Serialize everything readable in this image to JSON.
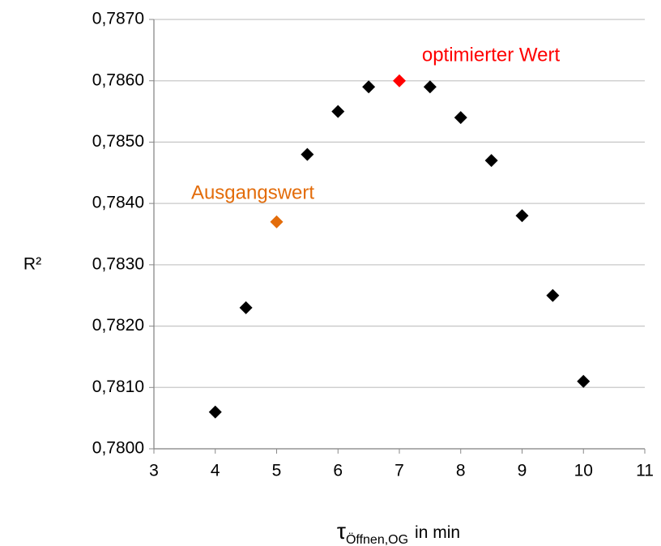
{
  "chart_data": {
    "type": "scatter",
    "ylabel": "R²",
    "xlabel": {
      "symbol": "τ",
      "subscript": "Öffnen,OG",
      "suffix": "in min"
    },
    "x": [
      4,
      4.5,
      5,
      5.5,
      6,
      6.5,
      7,
      7.5,
      8,
      8.5,
      9,
      9.5,
      10
    ],
    "values": [
      0.7806,
      0.7823,
      0.7837,
      0.7848,
      0.7855,
      0.7859,
      0.786,
      0.7859,
      0.7854,
      0.7847,
      0.7838,
      0.7825,
      0.7811
    ],
    "colors": [
      "#000000",
      "#000000",
      "#e36c0a",
      "#000000",
      "#000000",
      "#000000",
      "#ff0000",
      "#000000",
      "#000000",
      "#000000",
      "#000000",
      "#000000",
      "#000000"
    ],
    "annotations": [
      {
        "text": "optimierter Wert",
        "color": "#ff0000"
      },
      {
        "text": "Ausgangswert",
        "color": "#e36c0a"
      }
    ],
    "xlim": [
      3,
      11
    ],
    "xticks": [
      3,
      4,
      5,
      6,
      7,
      8,
      9,
      10,
      11
    ],
    "ylim": [
      0.78,
      0.787
    ],
    "yticks": [
      {
        "value": 0.78,
        "label": "0,7800"
      },
      {
        "value": 0.781,
        "label": "0,7810"
      },
      {
        "value": 0.782,
        "label": "0,7820"
      },
      {
        "value": 0.783,
        "label": "0,7830"
      },
      {
        "value": 0.784,
        "label": "0,7840"
      },
      {
        "value": 0.785,
        "label": "0,7850"
      },
      {
        "value": 0.786,
        "label": "0,7860"
      },
      {
        "value": 0.787,
        "label": "0,7870"
      }
    ],
    "grid": true
  }
}
